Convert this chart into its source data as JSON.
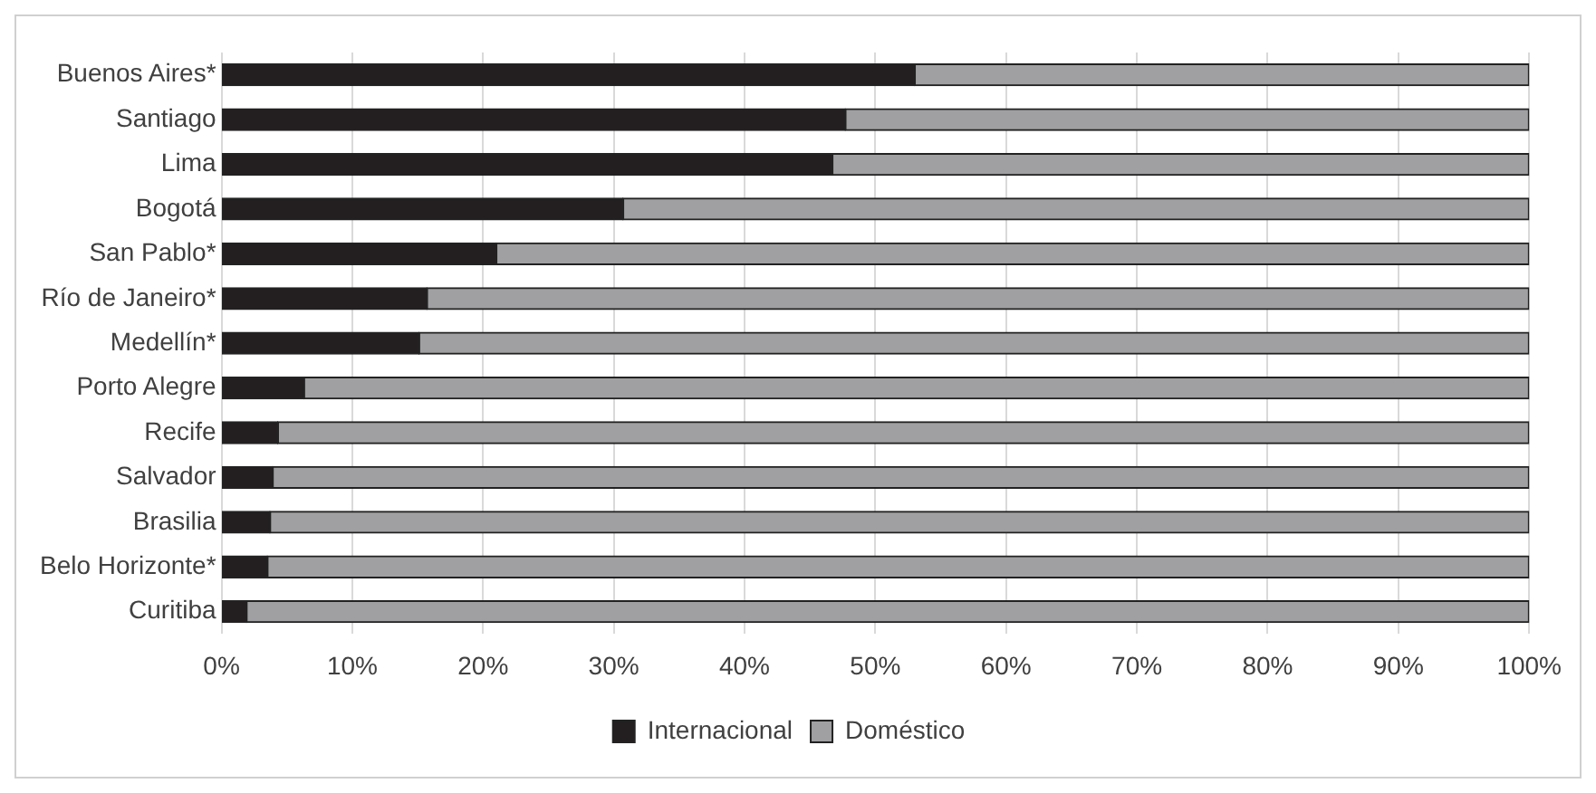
{
  "chart_data": {
    "type": "bar",
    "orientation": "horizontal",
    "stacked": true,
    "categories": [
      "Buenos Aires*",
      "Santiago",
      "Lima",
      "Bogotá",
      "San Pablo*",
      "Río de Janeiro*",
      "Medellín*",
      "Porto Alegre",
      "Recife",
      "Salvador",
      "Brasilia",
      "Belo Horizonte*",
      "Curitiba"
    ],
    "series": [
      {
        "name": "Internacional",
        "color": "#231f20",
        "values": [
          53.0,
          47.7,
          46.7,
          30.7,
          21.0,
          15.7,
          15.1,
          6.3,
          4.3,
          3.9,
          3.7,
          3.5,
          1.9
        ]
      },
      {
        "name": "Doméstico",
        "color": "#a0a0a2",
        "values": [
          47.0,
          52.3,
          53.3,
          69.3,
          79.0,
          84.3,
          84.9,
          93.7,
          95.7,
          96.1,
          96.3,
          96.5,
          98.1
        ]
      }
    ],
    "xlim": [
      0,
      100
    ],
    "xticks": [
      {
        "value": 0,
        "label": "0%"
      },
      {
        "value": 10,
        "label": "10%"
      },
      {
        "value": 20,
        "label": "20%"
      },
      {
        "value": 30,
        "label": "30%"
      },
      {
        "value": 40,
        "label": "40%"
      },
      {
        "value": 50,
        "label": "50%"
      },
      {
        "value": 60,
        "label": "60%"
      },
      {
        "value": 70,
        "label": "70%"
      },
      {
        "value": 80,
        "label": "80%"
      },
      {
        "value": 90,
        "label": "90%"
      },
      {
        "value": 100,
        "label": "100%"
      }
    ],
    "grid": "x",
    "legend": "bottom"
  }
}
